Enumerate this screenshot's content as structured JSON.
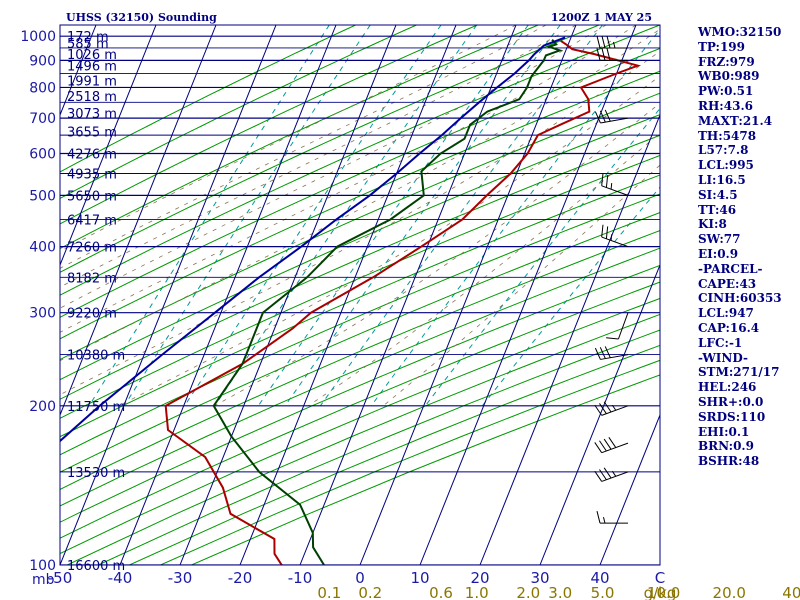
{
  "header": {
    "station": "UHSS (32150) Sounding",
    "time": "1200Z  1 MAY 25"
  },
  "side_params": [
    "WMO:32150",
    "TP:199",
    "FRZ:979",
    "WB0:989",
    "PW:0.51",
    "RH:43.6",
    "MAXT:21.4",
    "TH:5478",
    "L57:7.8",
    "LCL:995",
    "LI:16.5",
    "SI:4.5",
    "TT:46",
    "KI:8",
    "SW:77",
    "EI:0.9",
    "-PARCEL-",
    "CAPE:43",
    "CINH:60353",
    "LCL:947",
    "CAP:16.4",
    "LFC:-1",
    "-WIND-",
    "STM:271/17",
    "HEL:246",
    "SHR+:0.0",
    "SRDS:110",
    "EHI:0.1",
    "BRN:0.9",
    "BSHR:48"
  ],
  "chart_data": {
    "type": "line",
    "subtype": "skew-T log-p sounding",
    "pressure_axis": {
      "unit": "mb",
      "ticks": [
        100,
        200,
        300,
        400,
        500,
        600,
        700,
        800,
        900,
        1000
      ],
      "range": [
        1050,
        100
      ],
      "scale": "log"
    },
    "temperature_axis": {
      "ticks": [
        -50,
        -40,
        -30,
        -20,
        -10,
        0,
        10,
        20,
        30,
        40
      ],
      "labels": [
        "-50",
        "-40",
        "-30",
        "-20",
        "-10",
        "0",
        "10",
        "20",
        "30",
        "40"
      ],
      "range": [
        -50,
        50
      ],
      "edge_label": "C"
    },
    "mixing_ratio_axis": {
      "labels": [
        "0.1",
        "0.2",
        "0.6",
        "1.0",
        "2.0",
        "3.0",
        "5.0",
        "10.0",
        "20.0",
        "40.0"
      ],
      "values": [
        0.1,
        0.2,
        0.6,
        1.0,
        2.0,
        3.0,
        5.0,
        10.0,
        20.0,
        40.0
      ],
      "unit_label": "g/kg"
    },
    "height_levels": [
      {
        "p": 1000,
        "label": "172 m"
      },
      {
        "p": 970,
        "label": "585 m"
      },
      {
        "p": 925,
        "label": "1026 m"
      },
      {
        "p": 880,
        "label": "1496 m"
      },
      {
        "p": 825,
        "label": "1991 m"
      },
      {
        "p": 770,
        "label": "2518 m"
      },
      {
        "p": 715,
        "label": "3073 m"
      },
      {
        "p": 660,
        "label": "3655 m"
      },
      {
        "p": 600,
        "label": "4276 m"
      },
      {
        "p": 550,
        "label": "4935 m"
      },
      {
        "p": 500,
        "label": "5650 m"
      },
      {
        "p": 450,
        "label": "6417 m"
      },
      {
        "p": 400,
        "label": "7260 m"
      },
      {
        "p": 350,
        "label": "8182 m"
      },
      {
        "p": 300,
        "label": "9220 m"
      },
      {
        "p": 250,
        "label": "10380 m"
      },
      {
        "p": 200,
        "label": "11750 m"
      },
      {
        "p": 150,
        "label": "13530 m"
      },
      {
        "p": 100,
        "label": "16600 m"
      }
    ],
    "series": [
      {
        "role": "temperature",
        "color": "#aa0000",
        "points": [
          [
            980,
            -1.5
          ],
          [
            960,
            0
          ],
          [
            945,
            1
          ],
          [
            925,
            5
          ],
          [
            880,
            13
          ],
          [
            850,
            10
          ],
          [
            800,
            5
          ],
          [
            760,
            7
          ],
          [
            720,
            8
          ],
          [
            680,
            4
          ],
          [
            650,
            1
          ],
          [
            600,
            0.5
          ],
          [
            550,
            -1
          ],
          [
            500,
            -3.5
          ],
          [
            450,
            -6
          ],
          [
            400,
            -11
          ],
          [
            350,
            -17
          ],
          [
            300,
            -25
          ],
          [
            280,
            -27
          ],
          [
            240,
            -33
          ],
          [
            200,
            -43
          ],
          [
            180,
            -41
          ],
          [
            160,
            -33
          ],
          [
            140,
            -28
          ],
          [
            125,
            -25
          ],
          [
            112,
            -16
          ],
          [
            105,
            -15
          ],
          [
            95,
            -11
          ]
        ]
      },
      {
        "role": "dewpoint",
        "color": "#004000",
        "points": [
          [
            985,
            -3
          ],
          [
            965,
            -2
          ],
          [
            955,
            -3
          ],
          [
            940,
            -1
          ],
          [
            920,
            -3
          ],
          [
            900,
            -3
          ],
          [
            870,
            -3.5
          ],
          [
            840,
            -4
          ],
          [
            800,
            -4
          ],
          [
            760,
            -4.5
          ],
          [
            720,
            -9
          ],
          [
            680,
            -11
          ],
          [
            640,
            -11
          ],
          [
            600,
            -14
          ],
          [
            555,
            -16
          ],
          [
            500,
            -14
          ],
          [
            450,
            -18
          ],
          [
            400,
            -25
          ],
          [
            350,
            -28
          ],
          [
            300,
            -33
          ],
          [
            260,
            -33
          ],
          [
            240,
            -33
          ],
          [
            200,
            -35
          ],
          [
            175,
            -30
          ],
          [
            150,
            -23
          ],
          [
            130,
            -14
          ],
          [
            115,
            -10
          ],
          [
            108,
            -9
          ],
          [
            95,
            -4
          ]
        ]
      },
      {
        "role": "parcel",
        "color": "#0000a0",
        "points": [
          [
            995,
            -1
          ],
          [
            960,
            -4
          ],
          [
            925,
            -5
          ],
          [
            900,
            -5.5
          ],
          [
            850,
            -7
          ],
          [
            800,
            -9
          ],
          [
            750,
            -11
          ],
          [
            700,
            -13
          ],
          [
            650,
            -15
          ],
          [
            600,
            -17.5
          ],
          [
            550,
            -20
          ],
          [
            500,
            -23
          ],
          [
            450,
            -27
          ],
          [
            400,
            -31
          ],
          [
            350,
            -36
          ],
          [
            300,
            -41
          ],
          [
            250,
            -47
          ],
          [
            200,
            -54
          ],
          [
            150,
            -62
          ],
          [
            120,
            -67
          ],
          [
            110,
            -68
          ]
        ]
      }
    ],
    "wind_barbs": [
      {
        "p": 950,
        "dir": 270,
        "kt": 35
      },
      {
        "p": 900,
        "dir": 270,
        "kt": 30
      },
      {
        "p": 700,
        "dir": 260,
        "kt": 30
      },
      {
        "p": 500,
        "dir": 290,
        "kt": 25
      },
      {
        "p": 400,
        "dir": 290,
        "kt": 25
      },
      {
        "p": 300,
        "dir": 200,
        "kt": 10
      },
      {
        "p": 250,
        "dir": 260,
        "kt": 30
      },
      {
        "p": 200,
        "dir": 250,
        "kt": 35
      },
      {
        "p": 170,
        "dir": 250,
        "kt": 40
      },
      {
        "p": 150,
        "dir": 250,
        "kt": 35
      },
      {
        "p": 120,
        "dir": 270,
        "kt": 15
      }
    ],
    "colors": {
      "isobar": "#000080",
      "isotherm": "#000080",
      "dry_adiabat": "#009900",
      "moist_adiabat": "#8b7355",
      "mixing_ratio": "#009999",
      "axis_label": "#1a1aa6",
      "mixing_label": "#8b7500"
    }
  }
}
